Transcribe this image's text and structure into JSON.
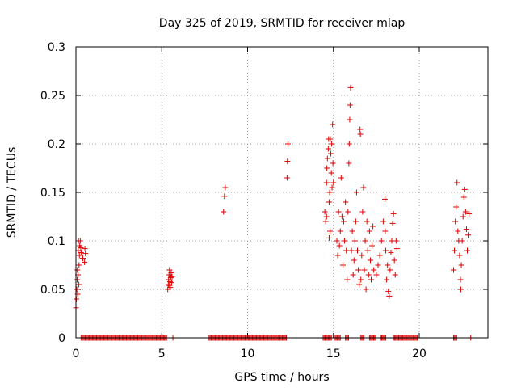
{
  "chart_data": {
    "type": "scatter",
    "title": "Day 325 of 2019, SRMTID for receiver mlap",
    "xlabel": "GPS time / hours",
    "ylabel": "SRMTID / TECUs",
    "xlim": [
      0,
      24
    ],
    "ylim": [
      0,
      0.3
    ],
    "xticks": [
      0,
      5,
      10,
      15,
      20
    ],
    "yticks": [
      0,
      0.05,
      0.1,
      0.15,
      0.2,
      0.25,
      0.3
    ],
    "xtick_labels": [
      "0",
      "5",
      "10",
      "15",
      "20"
    ],
    "ytick_labels": [
      "0",
      "0.05",
      "0.1",
      "0.15",
      "0.2",
      "0.25",
      "0.3"
    ],
    "grid": true,
    "marker": "+",
    "color": "#dd0000",
    "series": [
      {
        "name": "SRMTID",
        "points": [
          [
            0.0,
            0.031
          ],
          [
            0.02,
            0.04
          ],
          [
            0.05,
            0.05
          ],
          [
            0.07,
            0.06
          ],
          [
            0.08,
            0.07
          ],
          [
            0.1,
            0.045
          ],
          [
            0.12,
            0.065
          ],
          [
            0.13,
            0.09
          ],
          [
            0.15,
            0.1
          ],
          [
            0.17,
            0.055
          ],
          [
            0.18,
            0.075
          ],
          [
            0.2,
            0.085
          ],
          [
            0.22,
            0.095
          ],
          [
            0.25,
            0.1
          ],
          [
            0.28,
            0.093
          ],
          [
            0.3,
            0.088
          ],
          [
            0.4,
            0.082
          ],
          [
            0.5,
            0.078
          ],
          [
            0.52,
            0.092
          ],
          [
            0.55,
            0.087
          ],
          [
            5.35,
            0.05
          ],
          [
            5.38,
            0.055
          ],
          [
            5.4,
            0.06
          ],
          [
            5.42,
            0.065
          ],
          [
            5.45,
            0.07
          ],
          [
            5.48,
            0.058
          ],
          [
            5.5,
            0.052
          ],
          [
            5.52,
            0.062
          ],
          [
            5.55,
            0.067
          ],
          [
            5.58,
            0.057
          ],
          [
            5.6,
            0.063
          ],
          [
            5.45,
            0.054
          ],
          [
            8.6,
            0.13
          ],
          [
            8.65,
            0.146
          ],
          [
            8.7,
            0.155
          ],
          [
            12.3,
            0.165
          ],
          [
            12.32,
            0.182
          ],
          [
            12.35,
            0.2
          ],
          [
            14.5,
            0.13
          ],
          [
            14.55,
            0.12
          ],
          [
            14.6,
            0.16
          ],
          [
            14.62,
            0.175
          ],
          [
            14.65,
            0.185
          ],
          [
            14.7,
            0.195
          ],
          [
            14.72,
            0.205
          ],
          [
            14.75,
            0.14
          ],
          [
            14.78,
            0.15
          ],
          [
            14.8,
            0.11
          ],
          [
            14.82,
            0.205
          ],
          [
            14.85,
            0.19
          ],
          [
            14.88,
            0.17
          ],
          [
            14.9,
            0.2
          ],
          [
            14.92,
            0.155
          ],
          [
            14.95,
            0.22
          ],
          [
            14.97,
            0.18
          ],
          [
            15.0,
            0.16
          ],
          [
            14.75,
            0.103
          ],
          [
            14.6,
            0.125
          ],
          [
            15.2,
            0.1
          ],
          [
            15.25,
            0.085
          ],
          [
            15.3,
            0.13
          ],
          [
            15.35,
            0.095
          ],
          [
            15.4,
            0.11
          ],
          [
            15.45,
            0.165
          ],
          [
            15.5,
            0.125
          ],
          [
            15.55,
            0.075
          ],
          [
            15.6,
            0.12
          ],
          [
            15.65,
            0.1
          ],
          [
            15.7,
            0.14
          ],
          [
            15.75,
            0.09
          ],
          [
            15.8,
            0.06
          ],
          [
            15.85,
            0.13
          ],
          [
            15.9,
            0.18
          ],
          [
            15.92,
            0.2
          ],
          [
            15.95,
            0.225
          ],
          [
            15.97,
            0.24
          ],
          [
            16.0,
            0.258
          ],
          [
            16.05,
            0.09
          ],
          [
            16.1,
            0.11
          ],
          [
            16.15,
            0.065
          ],
          [
            16.2,
            0.08
          ],
          [
            16.25,
            0.1
          ],
          [
            16.3,
            0.12
          ],
          [
            16.35,
            0.15
          ],
          [
            16.4,
            0.09
          ],
          [
            16.45,
            0.07
          ],
          [
            16.5,
            0.055
          ],
          [
            16.55,
            0.215
          ],
          [
            16.57,
            0.21
          ],
          [
            16.6,
            0.06
          ],
          [
            16.65,
            0.085
          ],
          [
            16.7,
            0.13
          ],
          [
            16.75,
            0.155
          ],
          [
            16.8,
            0.07
          ],
          [
            16.85,
            0.1
          ],
          [
            16.9,
            0.05
          ],
          [
            16.95,
            0.12
          ],
          [
            17.0,
            0.09
          ],
          [
            17.05,
            0.065
          ],
          [
            17.1,
            0.11
          ],
          [
            17.15,
            0.08
          ],
          [
            17.2,
            0.06
          ],
          [
            17.25,
            0.095
          ],
          [
            17.3,
            0.115
          ],
          [
            17.35,
            0.07
          ],
          [
            17.5,
            0.065
          ],
          [
            17.6,
            0.075
          ],
          [
            17.7,
            0.085
          ],
          [
            17.8,
            0.1
          ],
          [
            17.9,
            0.12
          ],
          [
            18.0,
            0.143
          ],
          [
            18.02,
            0.11
          ],
          [
            18.05,
            0.09
          ],
          [
            18.1,
            0.06
          ],
          [
            18.15,
            0.075
          ],
          [
            18.2,
            0.048
          ],
          [
            18.25,
            0.043
          ],
          [
            18.3,
            0.07
          ],
          [
            18.35,
            0.088
          ],
          [
            18.4,
            0.1
          ],
          [
            18.45,
            0.118
          ],
          [
            18.5,
            0.128
          ],
          [
            18.55,
            0.08
          ],
          [
            18.6,
            0.065
          ],
          [
            18.65,
            0.1
          ],
          [
            18.7,
            0.092
          ],
          [
            22.0,
            0.07
          ],
          [
            22.05,
            0.09
          ],
          [
            22.1,
            0.12
          ],
          [
            22.15,
            0.135
          ],
          [
            22.2,
            0.16
          ],
          [
            22.25,
            0.11
          ],
          [
            22.3,
            0.1
          ],
          [
            22.35,
            0.085
          ],
          [
            22.4,
            0.06
          ],
          [
            22.42,
            0.05
          ],
          [
            22.45,
            0.075
          ],
          [
            22.5,
            0.1
          ],
          [
            22.55,
            0.125
          ],
          [
            22.6,
            0.145
          ],
          [
            22.65,
            0.153
          ],
          [
            22.7,
            0.13
          ],
          [
            22.75,
            0.112
          ],
          [
            22.8,
            0.09
          ],
          [
            22.85,
            0.106
          ],
          [
            22.9,
            0.128
          ]
        ],
        "baseline_segments": [
          [
            0.3,
            5.3
          ],
          [
            5.65,
            5.68
          ],
          [
            7.7,
            12.3
          ],
          [
            14.4,
            14.9
          ],
          [
            15.1,
            15.4
          ],
          [
            15.7,
            15.9
          ],
          [
            16.6,
            16.8
          ],
          [
            17.1,
            17.5
          ],
          [
            17.75,
            18.1
          ],
          [
            18.5,
            19.9
          ],
          [
            22.0,
            22.2
          ],
          [
            23.0,
            23.05
          ]
        ]
      }
    ]
  }
}
